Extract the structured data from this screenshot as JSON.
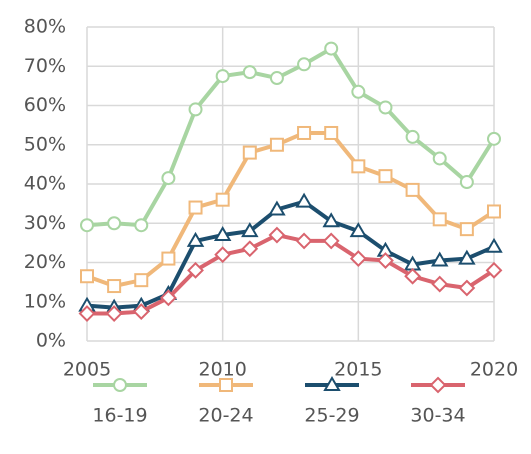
{
  "chart_data": {
    "type": "line",
    "x": [
      2005,
      2006,
      2007,
      2008,
      2009,
      2010,
      2011,
      2012,
      2013,
      2014,
      2015,
      2016,
      2017,
      2018,
      2019,
      2020
    ],
    "series": [
      {
        "name": "16-19",
        "color": "#a8d5a2",
        "marker": "circle",
        "values": [
          29.5,
          30,
          29.5,
          41.5,
          59,
          67.5,
          68.5,
          67,
          70.5,
          74.5,
          63.5,
          59.5,
          52,
          46.5,
          40.5,
          51.5
        ]
      },
      {
        "name": "20-24",
        "color": "#f0b87a",
        "marker": "square",
        "values": [
          16.5,
          14,
          15.5,
          21,
          34,
          36,
          48,
          50,
          53,
          53,
          44.5,
          42,
          38.5,
          31,
          28.5,
          33
        ]
      },
      {
        "name": "25-29",
        "color": "#1c4e6e",
        "marker": "triangle",
        "values": [
          9,
          8.5,
          9,
          12,
          25.5,
          27,
          28,
          33.5,
          35.5,
          30.5,
          28,
          23,
          19.5,
          20.5,
          21,
          24
        ]
      },
      {
        "name": "30-34",
        "color": "#d9646e",
        "marker": "diamond",
        "values": [
          7,
          7,
          7.5,
          11,
          18,
          22,
          23.5,
          27,
          25.5,
          25.5,
          21,
          20.5,
          16.5,
          14.5,
          13.5,
          18
        ]
      }
    ],
    "xlim": [
      2005,
      2020
    ],
    "xticks": [
      2005,
      2010,
      2015,
      2020
    ],
    "ylim": [
      0,
      80
    ],
    "yticks": [
      {
        "value": 0,
        "label": "0%"
      },
      {
        "value": 10,
        "label": "10%"
      },
      {
        "value": 20,
        "label": "20%"
      },
      {
        "value": 30,
        "label": "30%"
      },
      {
        "value": 40,
        "label": "40%"
      },
      {
        "value": 50,
        "label": "50%"
      },
      {
        "value": 60,
        "label": "60%"
      },
      {
        "value": 70,
        "label": "70%"
      },
      {
        "value": 80,
        "label": "80%"
      }
    ],
    "grid": true,
    "legend": "bottom"
  }
}
